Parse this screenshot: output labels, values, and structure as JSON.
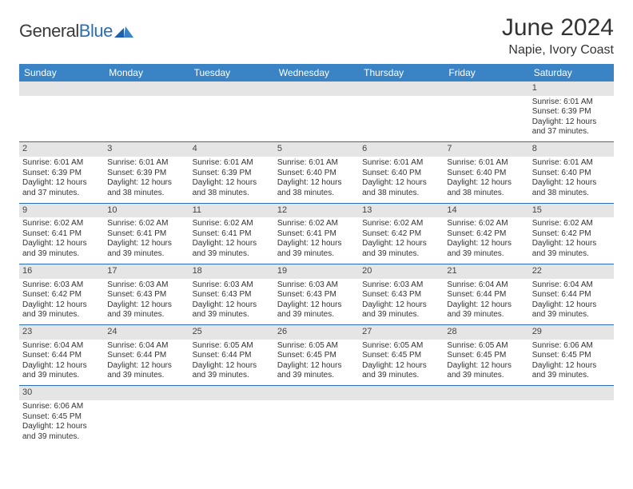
{
  "brand": {
    "name1": "General",
    "name2": "Blue"
  },
  "header": {
    "month_title": "June 2024",
    "location": "Napie, Ivory Coast"
  },
  "colors": {
    "header_bg": "#3a84c6",
    "rule": "#2a6db8",
    "daynum_bg": "#e5e5e5"
  },
  "weekdays": [
    "Sunday",
    "Monday",
    "Tuesday",
    "Wednesday",
    "Thursday",
    "Friday",
    "Saturday"
  ],
  "weeks": [
    {
      "nums": [
        "",
        "",
        "",
        "",
        "",
        "",
        "1"
      ],
      "cells": [
        "",
        "",
        "",
        "",
        "",
        "",
        "Sunrise: 6:01 AM\nSunset: 6:39 PM\nDaylight: 12 hours and 37 minutes."
      ]
    },
    {
      "nums": [
        "2",
        "3",
        "4",
        "5",
        "6",
        "7",
        "8"
      ],
      "cells": [
        "Sunrise: 6:01 AM\nSunset: 6:39 PM\nDaylight: 12 hours and 37 minutes.",
        "Sunrise: 6:01 AM\nSunset: 6:39 PM\nDaylight: 12 hours and 38 minutes.",
        "Sunrise: 6:01 AM\nSunset: 6:39 PM\nDaylight: 12 hours and 38 minutes.",
        "Sunrise: 6:01 AM\nSunset: 6:40 PM\nDaylight: 12 hours and 38 minutes.",
        "Sunrise: 6:01 AM\nSunset: 6:40 PM\nDaylight: 12 hours and 38 minutes.",
        "Sunrise: 6:01 AM\nSunset: 6:40 PM\nDaylight: 12 hours and 38 minutes.",
        "Sunrise: 6:01 AM\nSunset: 6:40 PM\nDaylight: 12 hours and 38 minutes."
      ]
    },
    {
      "nums": [
        "9",
        "10",
        "11",
        "12",
        "13",
        "14",
        "15"
      ],
      "cells": [
        "Sunrise: 6:02 AM\nSunset: 6:41 PM\nDaylight: 12 hours and 39 minutes.",
        "Sunrise: 6:02 AM\nSunset: 6:41 PM\nDaylight: 12 hours and 39 minutes.",
        "Sunrise: 6:02 AM\nSunset: 6:41 PM\nDaylight: 12 hours and 39 minutes.",
        "Sunrise: 6:02 AM\nSunset: 6:41 PM\nDaylight: 12 hours and 39 minutes.",
        "Sunrise: 6:02 AM\nSunset: 6:42 PM\nDaylight: 12 hours and 39 minutes.",
        "Sunrise: 6:02 AM\nSunset: 6:42 PM\nDaylight: 12 hours and 39 minutes.",
        "Sunrise: 6:02 AM\nSunset: 6:42 PM\nDaylight: 12 hours and 39 minutes."
      ]
    },
    {
      "nums": [
        "16",
        "17",
        "18",
        "19",
        "20",
        "21",
        "22"
      ],
      "cells": [
        "Sunrise: 6:03 AM\nSunset: 6:42 PM\nDaylight: 12 hours and 39 minutes.",
        "Sunrise: 6:03 AM\nSunset: 6:43 PM\nDaylight: 12 hours and 39 minutes.",
        "Sunrise: 6:03 AM\nSunset: 6:43 PM\nDaylight: 12 hours and 39 minutes.",
        "Sunrise: 6:03 AM\nSunset: 6:43 PM\nDaylight: 12 hours and 39 minutes.",
        "Sunrise: 6:03 AM\nSunset: 6:43 PM\nDaylight: 12 hours and 39 minutes.",
        "Sunrise: 6:04 AM\nSunset: 6:44 PM\nDaylight: 12 hours and 39 minutes.",
        "Sunrise: 6:04 AM\nSunset: 6:44 PM\nDaylight: 12 hours and 39 minutes."
      ]
    },
    {
      "nums": [
        "23",
        "24",
        "25",
        "26",
        "27",
        "28",
        "29"
      ],
      "cells": [
        "Sunrise: 6:04 AM\nSunset: 6:44 PM\nDaylight: 12 hours and 39 minutes.",
        "Sunrise: 6:04 AM\nSunset: 6:44 PM\nDaylight: 12 hours and 39 minutes.",
        "Sunrise: 6:05 AM\nSunset: 6:44 PM\nDaylight: 12 hours and 39 minutes.",
        "Sunrise: 6:05 AM\nSunset: 6:45 PM\nDaylight: 12 hours and 39 minutes.",
        "Sunrise: 6:05 AM\nSunset: 6:45 PM\nDaylight: 12 hours and 39 minutes.",
        "Sunrise: 6:05 AM\nSunset: 6:45 PM\nDaylight: 12 hours and 39 minutes.",
        "Sunrise: 6:06 AM\nSunset: 6:45 PM\nDaylight: 12 hours and 39 minutes."
      ]
    },
    {
      "nums": [
        "30",
        "",
        "",
        "",
        "",
        "",
        ""
      ],
      "cells": [
        "Sunrise: 6:06 AM\nSunset: 6:45 PM\nDaylight: 12 hours and 39 minutes.",
        "",
        "",
        "",
        "",
        "",
        ""
      ]
    }
  ]
}
